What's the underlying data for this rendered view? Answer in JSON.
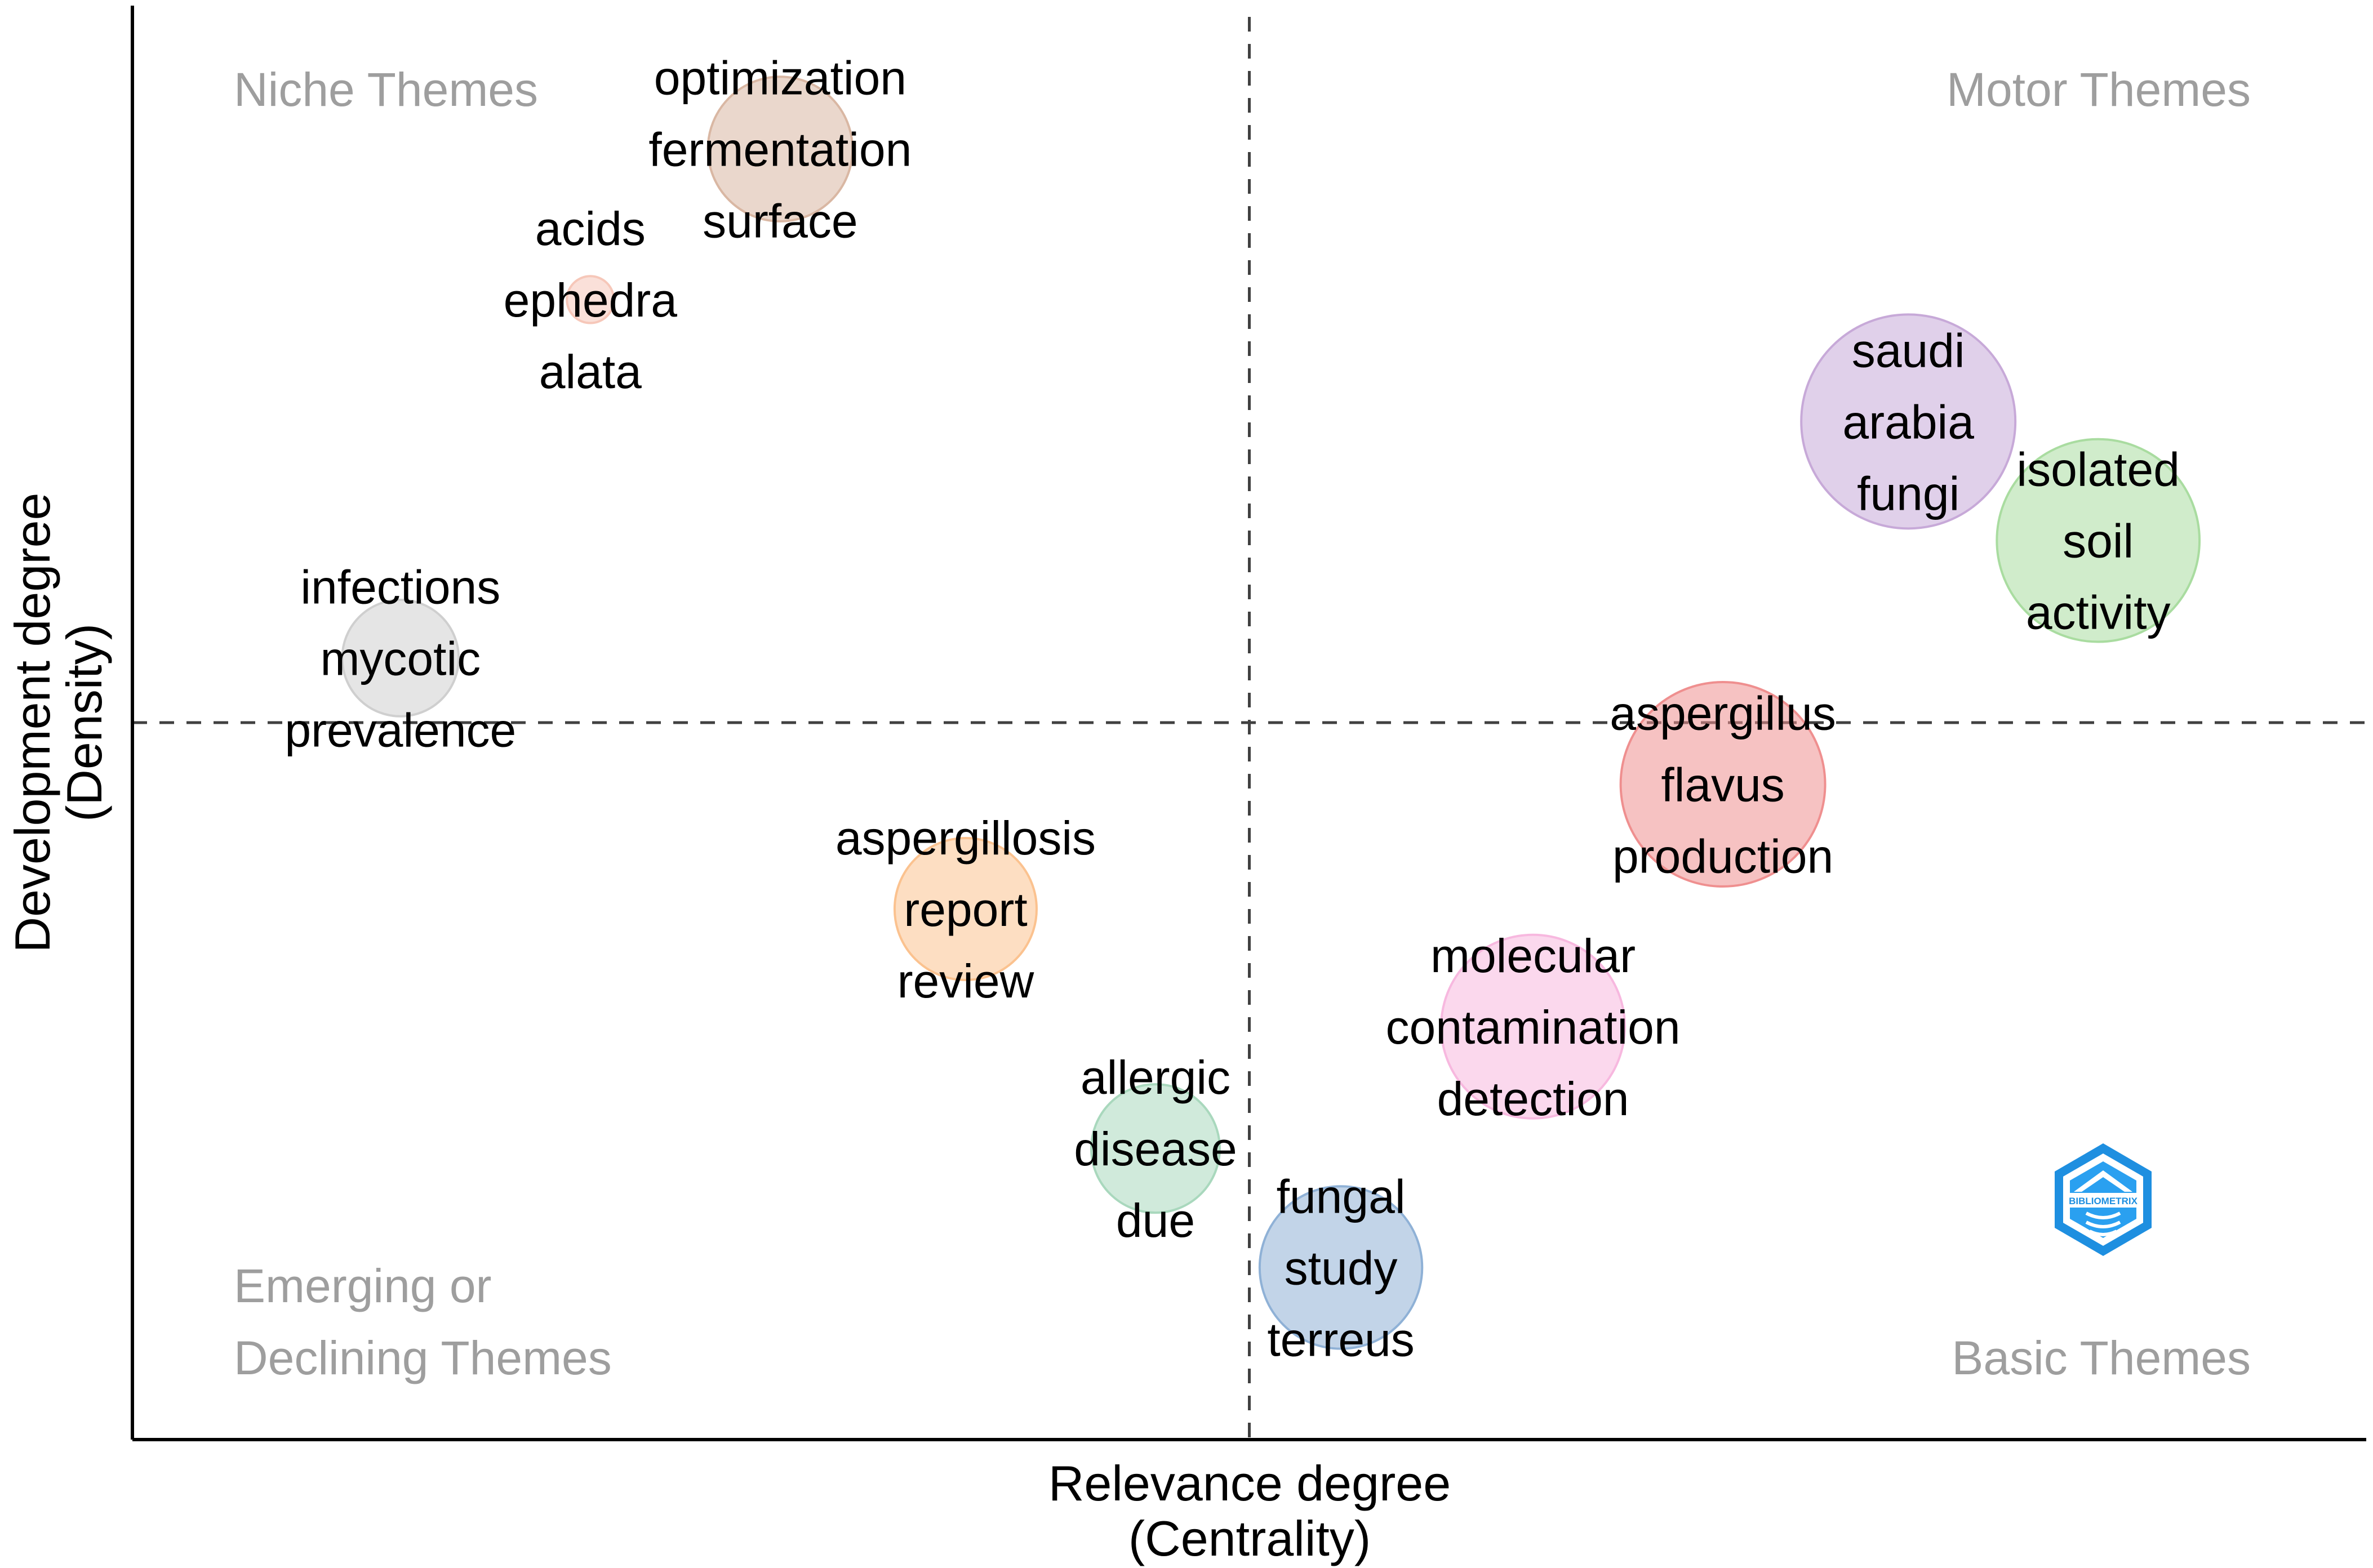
{
  "chart_data": {
    "type": "scatter",
    "subtype": "bubble",
    "title": "",
    "xlabel": [
      "Relevance degree",
      "(Centrality)"
    ],
    "ylabel": [
      "Development degree",
      "(Density)"
    ],
    "xlim": [
      0,
      1
    ],
    "ylim": [
      0,
      1
    ],
    "x_ref": 0.5,
    "y_ref": 0.5,
    "grid": false,
    "legend": "none",
    "quadrant_labels": {
      "top_left": [
        "Niche Themes"
      ],
      "top_right": [
        "Motor Themes"
      ],
      "bottom_left": [
        "Emerging or",
        "Declining Themes"
      ],
      "bottom_right": [
        "Basic Themes"
      ]
    },
    "logo": {
      "text": "BIBLIOMETRIX",
      "position": "bottom-right"
    },
    "clusters": [
      {
        "x": 0.29,
        "y": 0.9,
        "size": 0.57,
        "color": "#d9b7a3",
        "words": [
          "optimization",
          "fermentation",
          "surface"
        ]
      },
      {
        "x": 0.205,
        "y": 0.795,
        "size": 0.06,
        "color": "#f6c7b9",
        "words": [
          "acids",
          "ephedra",
          "alata"
        ]
      },
      {
        "x": 0.12,
        "y": 0.545,
        "size": 0.37,
        "color": "#cfcfcf",
        "words": [
          "infections",
          "mycotic",
          "prevalence"
        ]
      },
      {
        "x": 0.795,
        "y": 0.71,
        "size": 1.25,
        "color": "#c7a9d8",
        "words": [
          "saudi",
          "arabia",
          "fungi"
        ]
      },
      {
        "x": 0.88,
        "y": 0.627,
        "size": 1.12,
        "color": "#a9dca0",
        "words": [
          "isolated",
          "soil",
          "activity"
        ]
      },
      {
        "x": 0.712,
        "y": 0.457,
        "size": 1.14,
        "color": "#ef8f8f",
        "words": [
          "aspergillus",
          "flavus",
          "production"
        ]
      },
      {
        "x": 0.373,
        "y": 0.37,
        "size": 0.55,
        "color": "#fbc28f",
        "words": [
          "aspergillosis",
          "report",
          "review"
        ]
      },
      {
        "x": 0.627,
        "y": 0.288,
        "size": 0.92,
        "color": "#f7b8df",
        "words": [
          "molecular",
          "contamination",
          "detection"
        ]
      },
      {
        "x": 0.458,
        "y": 0.203,
        "size": 0.45,
        "color": "#a9d8bd",
        "words": [
          "allergic",
          "disease",
          "due"
        ]
      },
      {
        "x": 0.541,
        "y": 0.12,
        "size": 0.72,
        "color": "#8fb1d6",
        "words": [
          "fungal",
          "study",
          "terreus"
        ]
      }
    ]
  }
}
